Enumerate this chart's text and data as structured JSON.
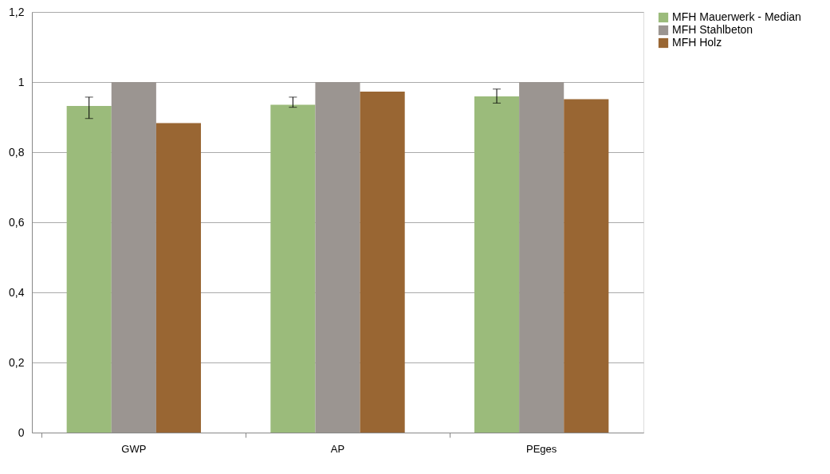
{
  "chart_data": {
    "type": "bar",
    "categories": [
      "GWP",
      "AP",
      "PEges"
    ],
    "series": [
      {
        "name": "MFH Mauerwerk - Median",
        "color": "#9bbb7b",
        "values": [
          0.932,
          0.935,
          0.959
        ],
        "errors": [
          [
            0.896,
            0.957
          ],
          [
            0.928,
            0.957
          ],
          [
            0.94,
            0.98
          ]
        ]
      },
      {
        "name": "MFH Stahlbeton",
        "color": "#9b9591",
        "values": [
          1,
          1,
          1
        ]
      },
      {
        "name": "MFH Holz",
        "color": "#996633",
        "values": [
          0.883,
          0.973,
          0.951
        ]
      }
    ],
    "ylim": [
      0,
      1.2
    ],
    "yticks": [
      0,
      {
        "value": 0.2,
        "label": "0,2"
      },
      {
        "value": 0.4,
        "label": "0,4"
      },
      {
        "value": 0.6,
        "label": "0,6"
      },
      {
        "value": 0.8,
        "label": "0,8"
      },
      1,
      {
        "value": 1.2,
        "label": "1,2"
      }
    ],
    "grid": "y",
    "legend": "right"
  }
}
